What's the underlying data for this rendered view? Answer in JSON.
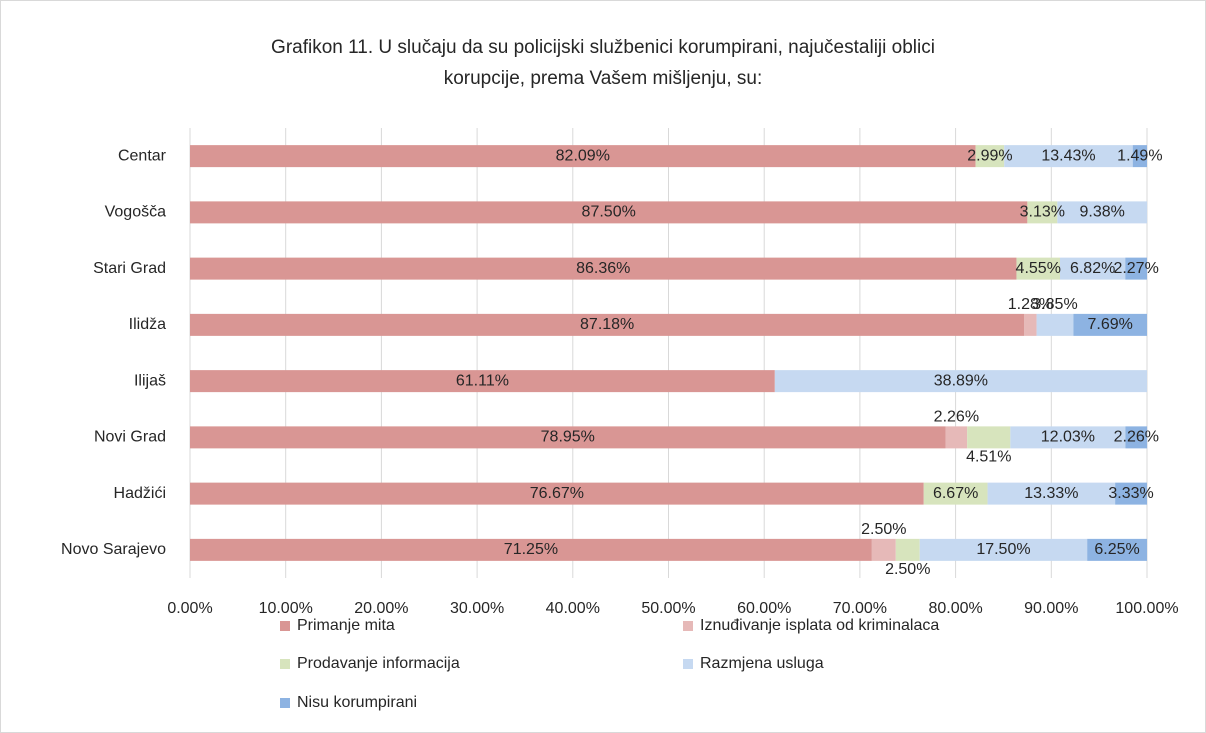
{
  "chart_data": {
    "type": "stacked-bar-horizontal",
    "title": [
      "Grafikon 11. U slučaju da su policijski službenici korumpirani, najučestaliji oblici",
      "korupcije, prema Vašem  mišljenju, su:"
    ],
    "categories": [
      "Centar",
      "Vogošča",
      "Stari Grad",
      "Ilidža",
      "Ilijaš",
      "Novi Grad",
      "Hadžići",
      "Novo Sarajevo"
    ],
    "series": [
      {
        "name": "Primanje mita",
        "color": "#d99694",
        "values": [
          82.09,
          87.5,
          86.36,
          87.18,
          61.11,
          78.95,
          76.67,
          71.25
        ],
        "value_labels": [
          "82.09%",
          "87.50%",
          "86.36%",
          "87.18%",
          "61.11%",
          "78.95%",
          "76.67%",
          "71.25%"
        ]
      },
      {
        "name": "Iznuđivanje isplata od kriminalaca",
        "color": "#e6b9b8",
        "values": [
          null,
          null,
          null,
          1.28,
          null,
          2.26,
          null,
          2.5
        ],
        "value_labels": [
          null,
          null,
          null,
          "1.28%",
          null,
          "2.26%",
          null,
          "2.50%"
        ]
      },
      {
        "name": "Prodavanje informacija",
        "color": "#d7e4bd",
        "values": [
          2.99,
          3.13,
          4.55,
          null,
          null,
          4.51,
          6.67,
          2.5
        ],
        "value_labels": [
          "2.99%",
          "3.13%",
          "4.55%",
          null,
          null,
          "4.51%",
          "6.67%",
          "2.50%"
        ]
      },
      {
        "name": "Razmjena usluga",
        "color": "#c6d9f1",
        "values": [
          13.43,
          9.38,
          6.82,
          3.85,
          38.89,
          12.03,
          13.33,
          17.5
        ],
        "value_labels": [
          "13.43%",
          "9.38%",
          "6.82%",
          "3.85%",
          "38.89%",
          "12.03%",
          "13.33%",
          "17.50%"
        ]
      },
      {
        "name": "Nisu korumpirani",
        "color": "#8db3e2",
        "values": [
          1.49,
          null,
          2.27,
          7.69,
          null,
          2.26,
          3.33,
          6.25
        ],
        "value_labels": [
          "1.49%",
          null,
          "2.27%",
          "7.69%",
          null,
          "2.26%",
          "3.33%",
          "6.25%"
        ]
      }
    ],
    "xlim": [
      0,
      100
    ],
    "xticks": [
      {
        "value": 0,
        "label": "0.00%"
      },
      {
        "value": 10,
        "label": "10.00%"
      },
      {
        "value": 20,
        "label": "20.00%"
      },
      {
        "value": 30,
        "label": "30.00%"
      },
      {
        "value": 40,
        "label": "40.00%"
      },
      {
        "value": 50,
        "label": "50.00%"
      },
      {
        "value": 60,
        "label": "60.00%"
      },
      {
        "value": 70,
        "label": "70.00%"
      },
      {
        "value": 80,
        "label": "80.00%"
      },
      {
        "value": 90,
        "label": "90.00%"
      },
      {
        "value": 100,
        "label": "100.00%"
      }
    ],
    "grid": true,
    "legend": "bottom"
  }
}
